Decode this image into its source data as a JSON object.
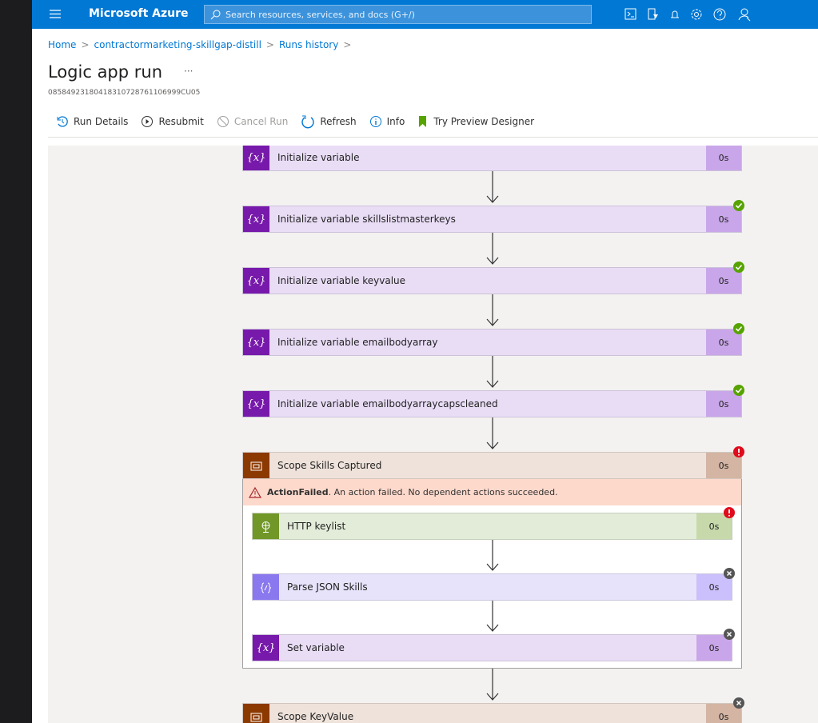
{
  "topbar": {
    "brand": "Microsoft Azure",
    "search_placeholder": "Search resources, services, and docs (G+/)"
  },
  "breadcrumb": {
    "items": [
      "Home",
      "contractormarketing-skillgap-distill",
      "Runs history"
    ],
    "separator": ">"
  },
  "header": {
    "title": "Logic app run",
    "more": "···",
    "run_id": "08584923180418310728761106999CU05"
  },
  "toolbar": [
    "Run Details",
    "Resubmit",
    "Cancel Run",
    "Refresh",
    "Info",
    "Try Preview Designer"
  ],
  "nodes": [
    {
      "label": "Initialize variable",
      "duration": "0s",
      "kind": "variable",
      "icon": "{x}",
      "status": "none"
    },
    {
      "label": "Initialize variable skillslistmasterkeys",
      "duration": "0s",
      "kind": "variable",
      "icon": "{x}",
      "status": "success"
    },
    {
      "label": "Initialize variable keyvalue",
      "duration": "0s",
      "kind": "variable",
      "icon": "{x}",
      "status": "success"
    },
    {
      "label": "Initialize variable emailbodyarray",
      "duration": "0s",
      "kind": "variable",
      "icon": "{x}",
      "status": "success"
    },
    {
      "label": "Initialize variable emailbodyarraycapscleaned",
      "duration": "0s",
      "kind": "variable",
      "icon": "{x}",
      "status": "success"
    },
    {
      "label": "Scope Skills Captured",
      "duration": "0s",
      "kind": "scope",
      "status": "failed",
      "alert": {
        "code": "ActionFailed",
        "message": ". An action failed. No dependent actions succeeded."
      },
      "children": [
        {
          "label": "HTTP keylist",
          "duration": "0s",
          "kind": "http",
          "status": "failed"
        },
        {
          "label": "Parse JSON Skills",
          "duration": "0s",
          "kind": "json",
          "status": "skipped"
        },
        {
          "label": "Set variable",
          "duration": "0s",
          "kind": "variable",
          "icon": "{x}",
          "status": "skipped"
        }
      ]
    },
    {
      "label": "Scope KeyValue",
      "duration": "0s",
      "kind": "scope",
      "status": "skipped"
    }
  ]
}
